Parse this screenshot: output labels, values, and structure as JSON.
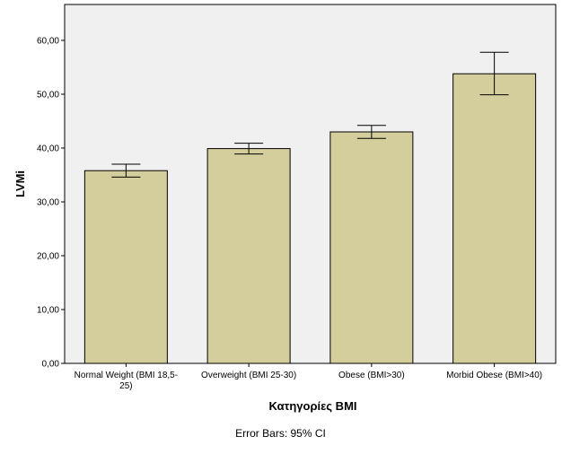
{
  "chart_data": {
    "type": "bar",
    "title": "",
    "xlabel": "Κατηγορίες BMI",
    "ylabel": "LVMi",
    "categories": [
      [
        "Normal Weight (BMI 18,5-",
        "25)"
      ],
      [
        "Overweight (BMI 25-30)"
      ],
      [
        "Obese (BMI>30)"
      ],
      [
        "Morbid Obese (BMI>40)"
      ]
    ],
    "values": [
      35.8,
      39.9,
      43.0,
      53.8
    ],
    "error_low": [
      34.6,
      38.9,
      41.8,
      49.9
    ],
    "error_high": [
      37.0,
      40.9,
      44.2,
      57.8
    ],
    "ylim": [
      0,
      60
    ],
    "yticks": [
      "0,00",
      "10,00",
      "20,00",
      "30,00",
      "40,00",
      "50,00",
      "60,00"
    ],
    "ytick_values": [
      0,
      10,
      20,
      30,
      40,
      50,
      60
    ],
    "footnote": "Error Bars: 95% CI",
    "grid": false,
    "colors": {
      "bar_fill": "#d3ce9b",
      "bar_stroke": "#000000",
      "plot_background": "#f0f0f0",
      "frame": "#000000"
    }
  }
}
